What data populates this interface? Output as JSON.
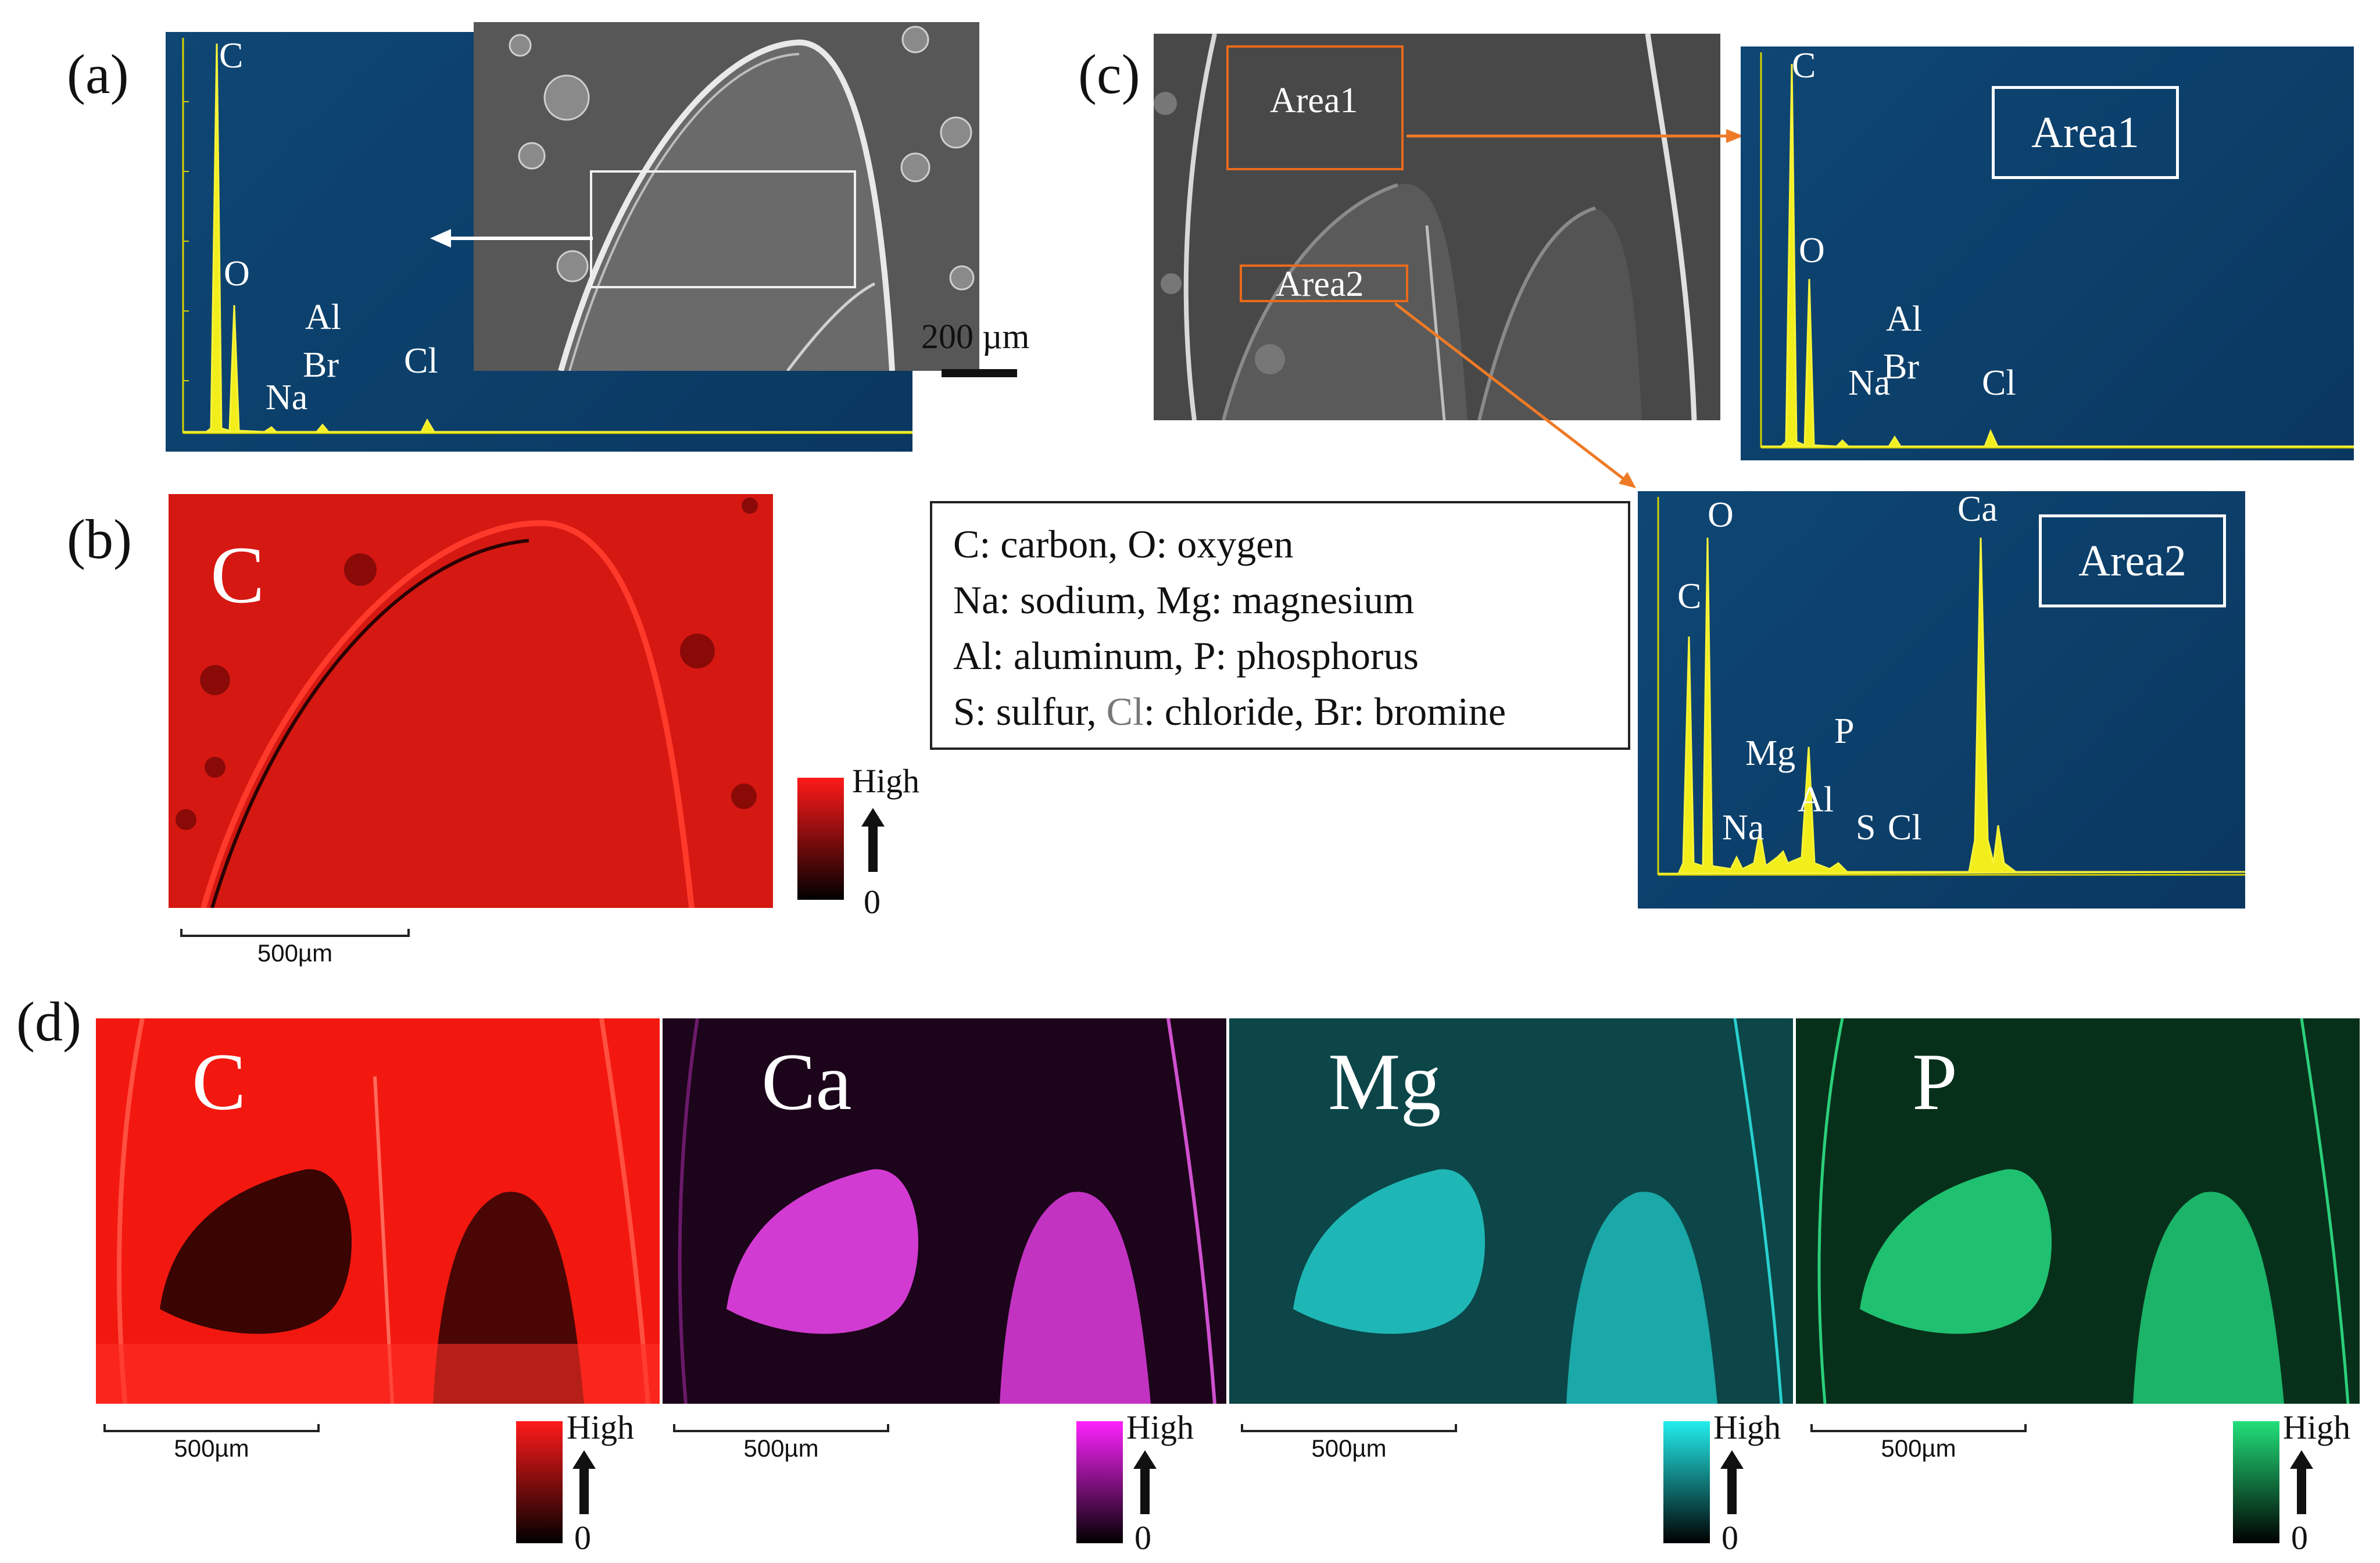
{
  "panels": {
    "a": {
      "label": "(a)",
      "peaks": {
        "c": "C",
        "o": "O",
        "al": "Al",
        "br": "Br",
        "na": "Na",
        "cl": "Cl"
      },
      "scale": "200 µm"
    },
    "b": {
      "label": "(b)",
      "element": "C",
      "scale": "500µm",
      "cbar": {
        "high": "High",
        "zero": "0",
        "color": "#ff1a1a"
      }
    },
    "c": {
      "label": "(c)",
      "area1": "Area1",
      "area2": "Area2",
      "spec1_title": "Area1",
      "spec2_title": "Area2",
      "spec1_peaks": {
        "c": "C",
        "o": "O",
        "al": "Al",
        "br": "Br",
        "na": "Na",
        "cl": "Cl"
      },
      "spec2_peaks": {
        "c": "C",
        "o": "O",
        "ca": "Ca",
        "mg": "Mg",
        "p": "P",
        "al": "Al",
        "na": "Na",
        "s": "S",
        "cl": "Cl"
      }
    },
    "legend": {
      "line1": "C: carbon,  O: oxygen",
      "line2": "Na: sodium, Mg: magnesium",
      "line3": "Al: aluminum, P: phosphorus",
      "line4_a": "S: sulfur, ",
      "line4_b": "Cl",
      "line4_c": ": chloride, Br: bromine"
    },
    "d": {
      "label": "(d)",
      "maps": [
        {
          "element": "C",
          "scale": "500µm",
          "high": "High",
          "zero": "0",
          "color": "#ff1a1a"
        },
        {
          "element": "Ca",
          "scale": "500µm",
          "high": "High",
          "zero": "0",
          "color": "#ff22ff"
        },
        {
          "element": "Mg",
          "scale": "500µm",
          "high": "High",
          "zero": "0",
          "color": "#22eeee"
        },
        {
          "element": "P",
          "scale": "500µm",
          "high": "High",
          "zero": "0",
          "color": "#22e07a"
        }
      ]
    }
  }
}
